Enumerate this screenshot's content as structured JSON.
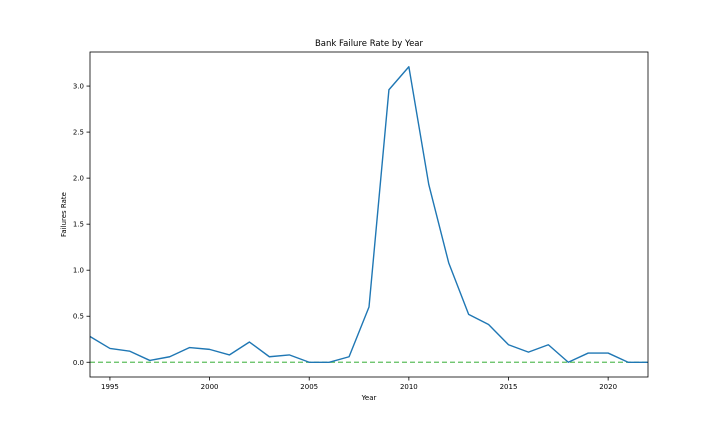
{
  "chart_data": {
    "type": "line",
    "title": "Bank Failure Rate by Year",
    "xlabel": "Year",
    "ylabel": "Failures Rate",
    "xlim": [
      1994,
      2022
    ],
    "ylim": [
      -0.16,
      3.37
    ],
    "xticks": [
      1995,
      2000,
      2005,
      2010,
      2015,
      2020
    ],
    "yticks": [
      0.0,
      0.5,
      1.0,
      1.5,
      2.0,
      2.5,
      3.0
    ],
    "ytick_labels": [
      "0.0",
      "0.5",
      "1.0",
      "1.5",
      "2.0",
      "2.5",
      "3.0"
    ],
    "grid": false,
    "series": [
      {
        "color": "#1f77b4",
        "style": "solid",
        "x": [
          1994,
          1995,
          1996,
          1997,
          1998,
          1999,
          2000,
          2001,
          2002,
          2003,
          2004,
          2005,
          2006,
          2007,
          2008,
          2009,
          2010,
          2011,
          2012,
          2013,
          2014,
          2015,
          2016,
          2017,
          2018,
          2019,
          2020,
          2021,
          2022
        ],
        "values": [
          0.28,
          0.15,
          0.12,
          0.02,
          0.06,
          0.16,
          0.14,
          0.08,
          0.22,
          0.06,
          0.08,
          0.0,
          0.0,
          0.06,
          0.6,
          2.96,
          3.21,
          1.93,
          1.08,
          0.52,
          0.41,
          0.19,
          0.11,
          0.19,
          0.0,
          0.1,
          0.1,
          0.0,
          0.0
        ]
      }
    ],
    "reference_lines": [
      {
        "y": 0.0,
        "color": "#5dbf5d",
        "style": "dashed"
      }
    ]
  }
}
